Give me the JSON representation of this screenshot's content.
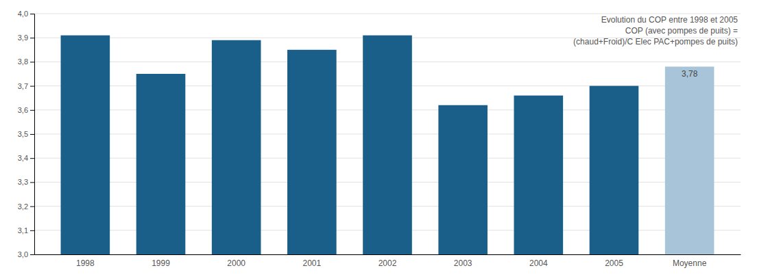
{
  "chart_data": {
    "type": "bar",
    "categories": [
      "1998",
      "1999",
      "2000",
      "2001",
      "2002",
      "2003",
      "2004",
      "2005",
      "Moyenne"
    ],
    "values": [
      3.91,
      3.75,
      3.89,
      3.85,
      3.91,
      3.62,
      3.66,
      3.7,
      3.78
    ],
    "colors": [
      "#1a5f8a",
      "#1a5f8a",
      "#1a5f8a",
      "#1a5f8a",
      "#1a5f8a",
      "#1a5f8a",
      "#1a5f8a",
      "#1a5f8a",
      "#a8c4d8"
    ],
    "ylim": [
      3.0,
      4.0
    ],
    "yticks": [
      {
        "value": 3.0,
        "label": "3,0"
      },
      {
        "value": 3.1,
        "label": "3,1"
      },
      {
        "value": 3.2,
        "label": "3,2"
      },
      {
        "value": 3.3,
        "label": "3,3"
      },
      {
        "value": 3.4,
        "label": "3,4"
      },
      {
        "value": 3.5,
        "label": "3,5"
      },
      {
        "value": 3.6,
        "label": "3,6"
      },
      {
        "value": 3.7,
        "label": "3,7"
      },
      {
        "value": 3.8,
        "label": "3,8"
      },
      {
        "value": 3.9,
        "label": "3,9"
      },
      {
        "value": 4.0,
        "label": "4,0"
      }
    ],
    "grid": true,
    "annotations": [
      {
        "text": "3,78",
        "x": "Moyenne",
        "y": 3.78
      },
      {
        "text": "Evolution du COP entre 1998 et 2005"
      },
      {
        "text": "COP (avec pompes de puits) ="
      },
      {
        "text": "(chaud+Froid)/C Elec PAC+pompes de puits)"
      }
    ]
  }
}
